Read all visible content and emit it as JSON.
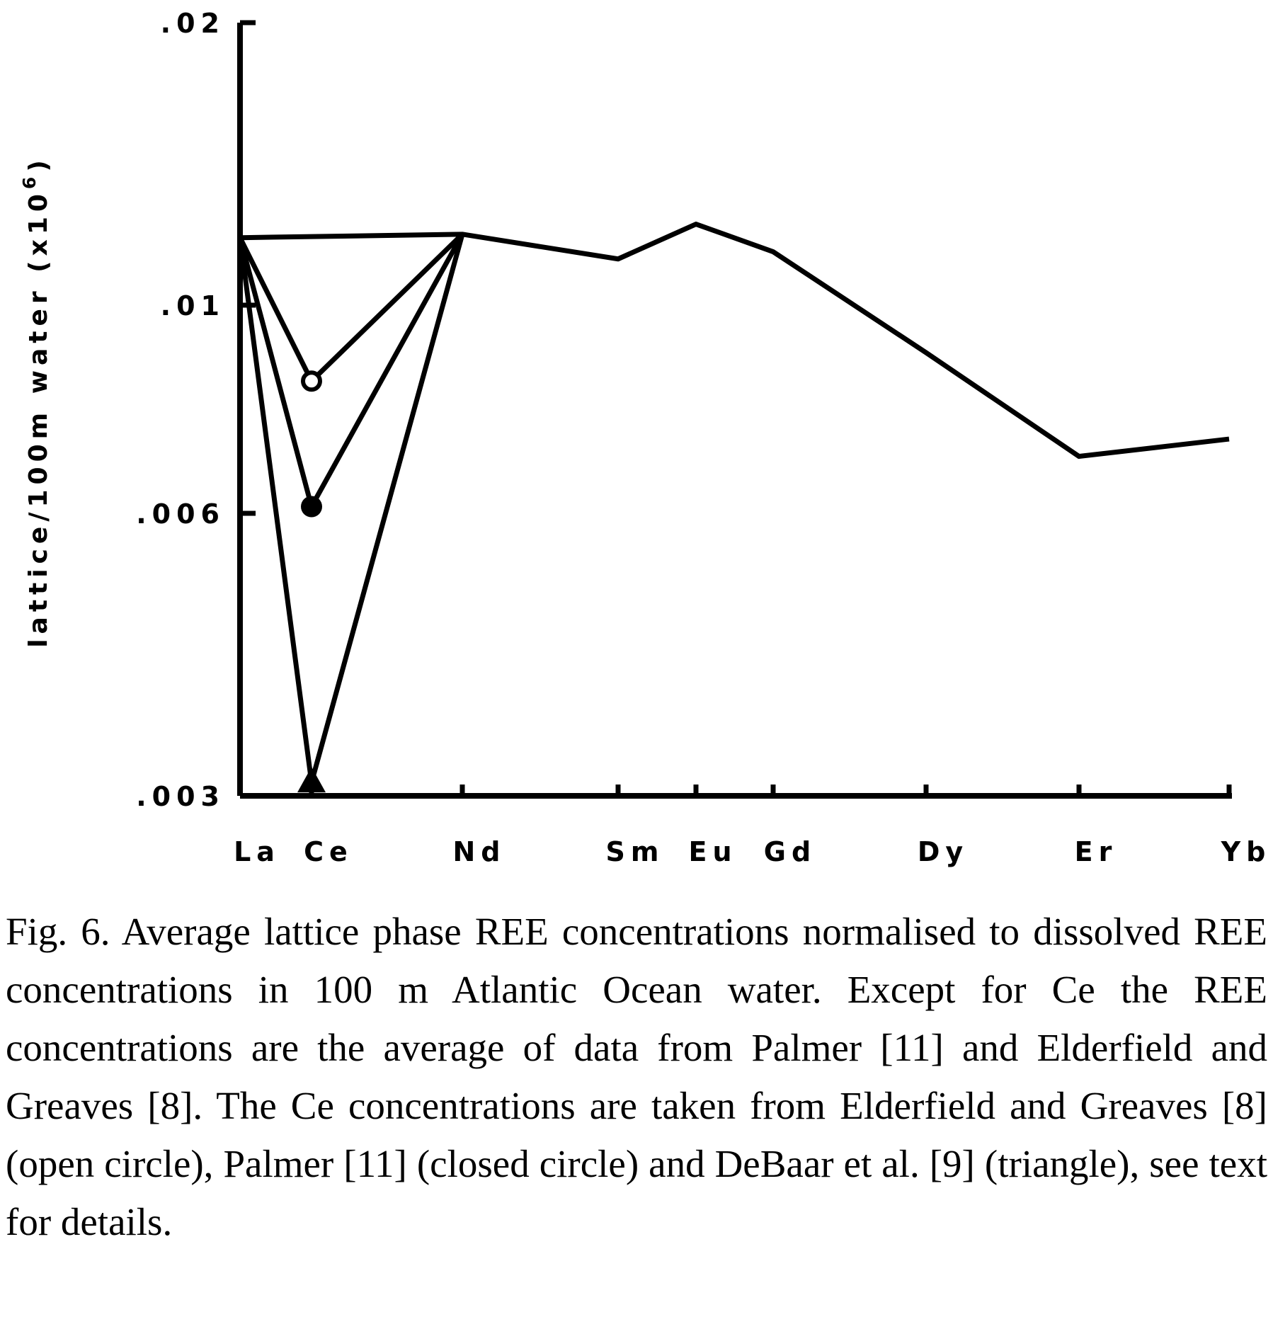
{
  "chart_data": {
    "type": "line",
    "categories": [
      "La",
      "Ce",
      "Nd",
      "Sm",
      "Eu",
      "Gd",
      "Dy",
      "Er",
      "Yb"
    ],
    "y_ticks": [
      ".02",
      ".01",
      ".006",
      ".003"
    ],
    "ylabel_main": "lattice/100m water (x10",
    "ylabel_sup": "6",
    "ylabel_close": ")",
    "ylim": [
      0.003,
      0.02
    ],
    "yscale": "log",
    "grid": false,
    "main_series": {
      "points": [
        {
          "x": "La",
          "y": 0.0118
        },
        {
          "x": "Nd",
          "y": 0.0119
        },
        {
          "x": "Sm",
          "y": 0.0112
        },
        {
          "x": "Eu",
          "y": 0.0122
        },
        {
          "x": "Gd",
          "y": 0.0114
        },
        {
          "x": "Dy",
          "y": 0.0089
        },
        {
          "x": "Er",
          "y": 0.0069
        },
        {
          "x": "Yb",
          "y": 0.0072
        }
      ]
    },
    "ce_variants": [
      {
        "marker": "open-circle",
        "value": 0.0083
      },
      {
        "marker": "closed-circle",
        "value": 0.0061
      },
      {
        "marker": "triangle",
        "value": 0.0031
      }
    ],
    "color": "#000000"
  },
  "caption": "Fig. 6. Average lattice phase REE concentrations normalised to dissolved REE concentrations in 100 m Atlantic Ocean water. Except for Ce the REE concentrations are the average of data from Palmer [11] and Elderfield and Greaves [8]. The Ce concentrations are taken from Elderfield and Greaves [8] (open circle), Palmer [11] (closed circle) and DeBaar et al. [9] (triangle), see text for details."
}
